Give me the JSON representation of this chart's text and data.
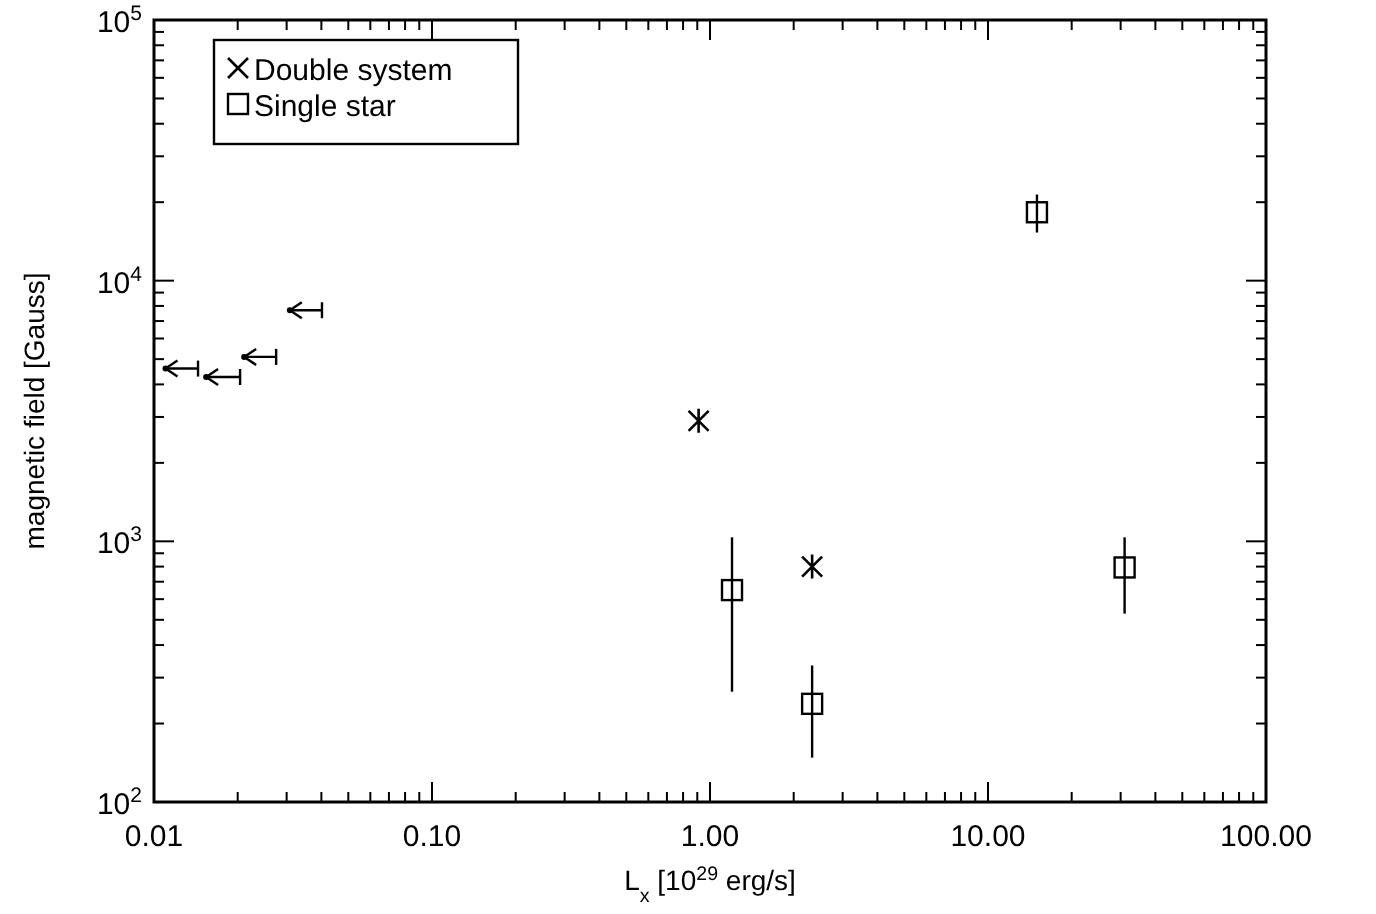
{
  "chart_data": {
    "type": "scatter",
    "xlabel": "L$_{x}$ [10$^{29}$ erg/s]",
    "ylabel": "magnetic field [Gauss]",
    "log": "xy",
    "grid": false,
    "legend": "top left",
    "xlim": [
      0.01,
      100
    ],
    "ylim": [
      100,
      100000
    ],
    "xticks": [
      {
        "value": 0.01,
        "label": "0.01"
      },
      {
        "value": 0.02,
        "label": null
      },
      {
        "value": 0.03,
        "label": null
      },
      {
        "value": 0.04,
        "label": null
      },
      {
        "value": 0.05,
        "label": null
      },
      {
        "value": 0.06,
        "label": null
      },
      {
        "value": 0.07,
        "label": null
      },
      {
        "value": 0.08,
        "label": null
      },
      {
        "value": 0.09,
        "label": null
      },
      {
        "value": 0.1,
        "label": "0.10"
      },
      {
        "value": 0.2,
        "label": null
      },
      {
        "value": 0.3,
        "label": null
      },
      {
        "value": 0.4,
        "label": null
      },
      {
        "value": 0.5,
        "label": null
      },
      {
        "value": 0.6,
        "label": null
      },
      {
        "value": 0.7,
        "label": null
      },
      {
        "value": 0.8,
        "label": null
      },
      {
        "value": 0.9,
        "label": null
      },
      {
        "value": 1,
        "label": "1.00"
      },
      {
        "value": 2,
        "label": null
      },
      {
        "value": 3,
        "label": null
      },
      {
        "value": 4,
        "label": null
      },
      {
        "value": 5,
        "label": null
      },
      {
        "value": 6,
        "label": null
      },
      {
        "value": 7,
        "label": null
      },
      {
        "value": 8,
        "label": null
      },
      {
        "value": 9,
        "label": null
      },
      {
        "value": 10,
        "label": "10.00"
      },
      {
        "value": 20,
        "label": null
      },
      {
        "value": 30,
        "label": null
      },
      {
        "value": 40,
        "label": null
      },
      {
        "value": 50,
        "label": null
      },
      {
        "value": 60,
        "label": null
      },
      {
        "value": 70,
        "label": null
      },
      {
        "value": 80,
        "label": null
      },
      {
        "value": 90,
        "label": null
      },
      {
        "value": 100,
        "label": "100.00"
      }
    ],
    "yticks": [
      {
        "value": 100,
        "label": "10$^{2}$"
      },
      {
        "value": 200,
        "label": null
      },
      {
        "value": 300,
        "label": null
      },
      {
        "value": 400,
        "label": null
      },
      {
        "value": 500,
        "label": null
      },
      {
        "value": 600,
        "label": null
      },
      {
        "value": 700,
        "label": null
      },
      {
        "value": 800,
        "label": null
      },
      {
        "value": 900,
        "label": null
      },
      {
        "value": 1000,
        "label": "10$^{3}$"
      },
      {
        "value": 2000,
        "label": null
      },
      {
        "value": 3000,
        "label": null
      },
      {
        "value": 4000,
        "label": null
      },
      {
        "value": 5000,
        "label": null
      },
      {
        "value": 6000,
        "label": null
      },
      {
        "value": 7000,
        "label": null
      },
      {
        "value": 8000,
        "label": null
      },
      {
        "value": 9000,
        "label": null
      },
      {
        "value": 10000,
        "label": "10$^{4}$"
      },
      {
        "value": 20000,
        "label": null
      },
      {
        "value": 30000,
        "label": null
      },
      {
        "value": 40000,
        "label": null
      },
      {
        "value": 50000,
        "label": null
      },
      {
        "value": 60000,
        "label": null
      },
      {
        "value": 70000,
        "label": null
      },
      {
        "value": 80000,
        "label": null
      },
      {
        "value": 90000,
        "label": null
      },
      {
        "value": 100000,
        "label": "10$^{5}$"
      }
    ],
    "series": [
      {
        "name": "Double system",
        "color": "#000000",
        "marker": "cross",
        "x": [
          0.91,
          2.33
        ],
        "values": [
          2900,
          800
        ]
      },
      {
        "name": "Single star",
        "color": "#000000",
        "marker": "square",
        "x": [
          1.2,
          2.33,
          15,
          31
        ],
        "values": [
          650,
          238,
          18300,
          794
        ],
        "errors": [
          [
            265,
            1036
          ],
          [
            148,
            334
          ],
          [
            15300,
            21400
          ],
          [
            528,
            1036
          ]
        ]
      },
      {
        "color": "#000000",
        "marker": "circle",
        "x": [
          0.011,
          0.0154,
          0.0211,
          0.0308
        ],
        "values": [
          4600,
          4270,
          5100,
          7700
        ],
        "xerrors": [
          [
            0.011,
            0.0144
          ],
          [
            0.0154,
            0.0204
          ],
          [
            0.0211,
            0.0275
          ],
          [
            0.0308,
            0.0402
          ]
        ]
      }
    ]
  }
}
